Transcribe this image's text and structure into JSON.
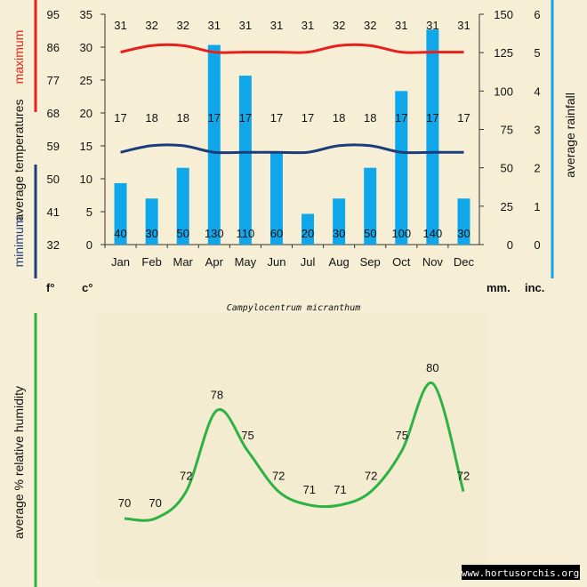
{
  "species": "Campylocentrum micranthum",
  "watermark": "www.hortusorchis.org",
  "side_labels": {
    "maximum": "maximum",
    "average_temperatures": "average temperatures",
    "minimum": "minimum",
    "average_rainfall": "average rainfall",
    "humidity": "average % relative humidity"
  },
  "units": {
    "f": "f°",
    "c": "c°",
    "mm": "mm.",
    "inc": "inc."
  },
  "colors": {
    "background": "#f6efd6",
    "max_line": "#e8201c",
    "min_line": "#1c3d7c",
    "rain_bar": "#10a7ea",
    "humidity_line": "#2cb344",
    "left_max_bar": "#e8201c",
    "left_min_bar": "#1c3d7c",
    "right_bar": "#10a7ea",
    "hum_bar": "#2cb344"
  },
  "chart_data": [
    {
      "type": "bar+line",
      "categories": [
        "Jan",
        "Feb",
        "Mar",
        "Apr",
        "May",
        "Jun",
        "Jul",
        "Aug",
        "Sep",
        "Oct",
        "Nov",
        "Dec"
      ],
      "series": [
        {
          "name": "maximum",
          "axis": "temperature_c",
          "values": [
            31,
            32,
            32,
            31,
            31,
            31,
            31,
            32,
            32,
            31,
            31,
            31
          ]
        },
        {
          "name": "minimum",
          "axis": "temperature_c",
          "values": [
            17,
            18,
            18,
            17,
            17,
            17,
            17,
            18,
            18,
            17,
            17,
            17
          ]
        },
        {
          "name": "average rainfall",
          "axis": "rainfall_mm",
          "values": [
            40,
            30,
            50,
            130,
            110,
            60,
            20,
            30,
            50,
            100,
            140,
            30
          ]
        }
      ],
      "axes": {
        "fahrenheit": {
          "ticks": [
            32,
            41,
            50,
            59,
            68,
            77,
            86,
            95
          ]
        },
        "celsius": {
          "ticks": [
            0,
            5,
            10,
            15,
            20,
            25,
            30,
            35
          ],
          "range": [
            0,
            35
          ]
        },
        "rainfall_mm": {
          "ticks": [
            0,
            25,
            50,
            75,
            100,
            125,
            150
          ],
          "range": [
            0,
            150
          ]
        },
        "rainfall_inches": {
          "ticks": [
            0,
            1,
            2,
            3,
            4,
            5,
            6
          ],
          "range": [
            0,
            6
          ]
        }
      }
    },
    {
      "type": "line",
      "categories": [
        "Jan",
        "Feb",
        "Mar",
        "Apr",
        "May",
        "Jun",
        "Jul",
        "Aug",
        "Sep",
        "Oct",
        "Nov",
        "Dec"
      ],
      "series": [
        {
          "name": "average % relative humidity",
          "values": [
            70,
            70,
            72,
            78,
            75,
            72,
            71,
            71,
            72,
            75,
            80,
            72
          ]
        }
      ]
    }
  ]
}
